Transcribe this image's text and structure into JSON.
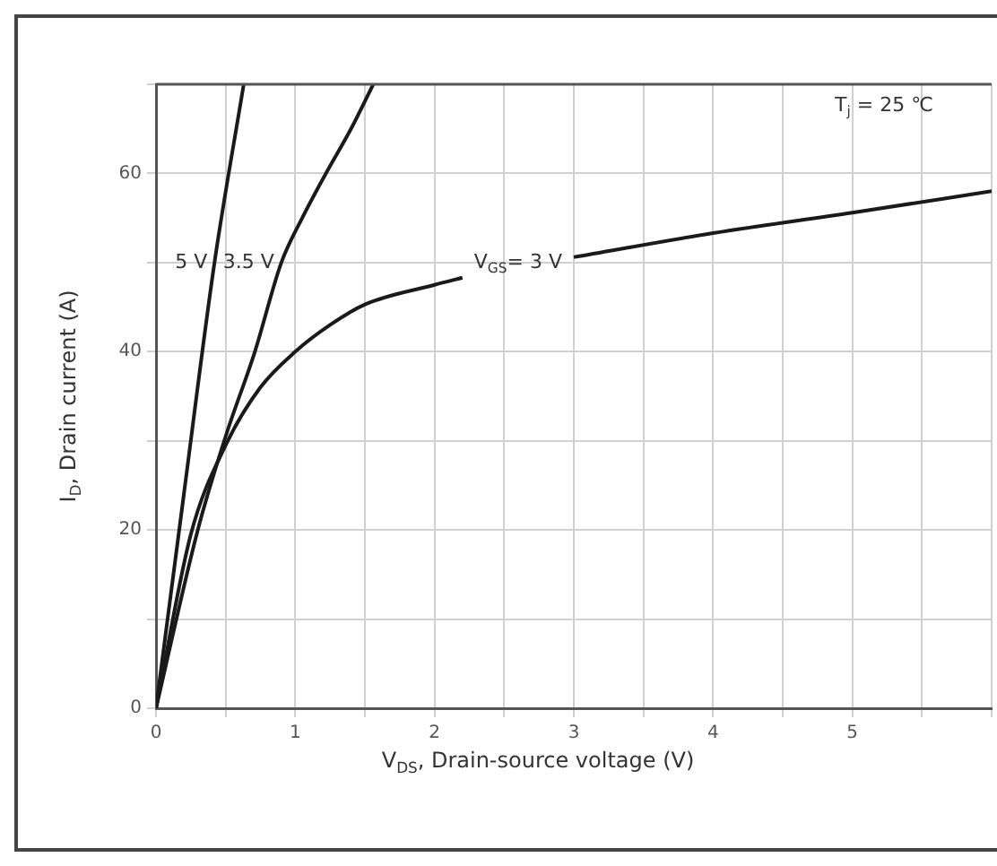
{
  "chart_data": {
    "type": "line",
    "xlabel": "V$_{DS}$, Drain-source voltage (V)",
    "ylabel": "I$_{D}$, Drain current (A)",
    "xlim": [
      0,
      6
    ],
    "xticks": [
      0,
      {
        "value": 0.5,
        "label": null
      },
      1,
      {
        "value": 1.5,
        "label": null
      },
      2,
      {
        "value": 2.5,
        "label": null
      },
      3,
      {
        "value": 3.5,
        "label": null
      },
      4,
      {
        "value": 4.5,
        "label": null
      },
      5,
      {
        "value": 5.5,
        "label": null
      },
      {
        "value": 6,
        "label": null
      }
    ],
    "ylim": [
      0,
      70
    ],
    "yticks": [
      0,
      {
        "value": 10,
        "label": null
      },
      20,
      {
        "value": 30,
        "label": null
      },
      40,
      {
        "value": 50,
        "label": null
      },
      60,
      {
        "value": 70,
        "label": null
      }
    ],
    "grid": true,
    "legend": false,
    "marker": "none",
    "line_style": "solid",
    "series": [
      {
        "name": "5 V",
        "color": "#1a1a1a",
        "x": [
          0,
          0.2,
          0.42,
          0.63
        ],
        "values": [
          0,
          24,
          50,
          70
        ]
      },
      {
        "name": "3.5 V",
        "color": "#1a1a1a",
        "x": [
          0,
          0.3,
          0.5,
          0.71,
          0.9,
          1.05,
          1.22,
          1.4,
          1.56
        ],
        "values": [
          0,
          20,
          30.5,
          40,
          50,
          55,
          60,
          65,
          70
        ]
      },
      {
        "name": "V$_{GS}$= 3 V",
        "color": "#1a1a1a",
        "x": [
          0,
          0.25,
          0.5,
          0.75,
          1,
          1.25,
          1.5,
          2,
          2.2,
          2.6,
          3,
          4,
          5,
          6
        ],
        "values": [
          0,
          19.5,
          29.5,
          36,
          40,
          43,
          45.3,
          47.5,
          48.3,
          null,
          50.6,
          53.3,
          55.6,
          58
        ]
      }
    ],
    "annotations": [
      "T$_{j}$ = 25 ℃"
    ]
  }
}
